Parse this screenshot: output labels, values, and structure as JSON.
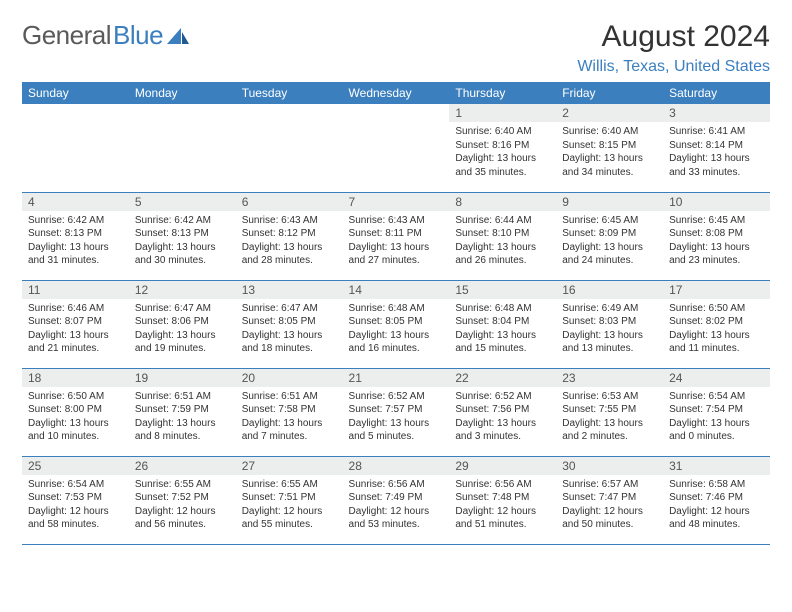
{
  "logo": {
    "text_gray": "General",
    "text_blue": "Blue"
  },
  "title": "August 2024",
  "location": "Willis, Texas, United States",
  "colors": {
    "header_bg": "#3b7fbf",
    "header_text": "#ffffff",
    "daynum_bg": "#eceded",
    "row_border": "#3b7fbf",
    "logo_gray": "#5a5a5a",
    "logo_blue": "#3b7fbf"
  },
  "weekdays": [
    "Sunday",
    "Monday",
    "Tuesday",
    "Wednesday",
    "Thursday",
    "Friday",
    "Saturday"
  ],
  "weeks": [
    [
      {
        "n": "",
        "sr": "",
        "ss": "",
        "dl1": "",
        "dl2": "",
        "empty": true
      },
      {
        "n": "",
        "sr": "",
        "ss": "",
        "dl1": "",
        "dl2": "",
        "empty": true
      },
      {
        "n": "",
        "sr": "",
        "ss": "",
        "dl1": "",
        "dl2": "",
        "empty": true
      },
      {
        "n": "",
        "sr": "",
        "ss": "",
        "dl1": "",
        "dl2": "",
        "empty": true
      },
      {
        "n": "1",
        "sr": "Sunrise: 6:40 AM",
        "ss": "Sunset: 8:16 PM",
        "dl1": "Daylight: 13 hours",
        "dl2": "and 35 minutes."
      },
      {
        "n": "2",
        "sr": "Sunrise: 6:40 AM",
        "ss": "Sunset: 8:15 PM",
        "dl1": "Daylight: 13 hours",
        "dl2": "and 34 minutes."
      },
      {
        "n": "3",
        "sr": "Sunrise: 6:41 AM",
        "ss": "Sunset: 8:14 PM",
        "dl1": "Daylight: 13 hours",
        "dl2": "and 33 minutes."
      }
    ],
    [
      {
        "n": "4",
        "sr": "Sunrise: 6:42 AM",
        "ss": "Sunset: 8:13 PM",
        "dl1": "Daylight: 13 hours",
        "dl2": "and 31 minutes."
      },
      {
        "n": "5",
        "sr": "Sunrise: 6:42 AM",
        "ss": "Sunset: 8:13 PM",
        "dl1": "Daylight: 13 hours",
        "dl2": "and 30 minutes."
      },
      {
        "n": "6",
        "sr": "Sunrise: 6:43 AM",
        "ss": "Sunset: 8:12 PM",
        "dl1": "Daylight: 13 hours",
        "dl2": "and 28 minutes."
      },
      {
        "n": "7",
        "sr": "Sunrise: 6:43 AM",
        "ss": "Sunset: 8:11 PM",
        "dl1": "Daylight: 13 hours",
        "dl2": "and 27 minutes."
      },
      {
        "n": "8",
        "sr": "Sunrise: 6:44 AM",
        "ss": "Sunset: 8:10 PM",
        "dl1": "Daylight: 13 hours",
        "dl2": "and 26 minutes."
      },
      {
        "n": "9",
        "sr": "Sunrise: 6:45 AM",
        "ss": "Sunset: 8:09 PM",
        "dl1": "Daylight: 13 hours",
        "dl2": "and 24 minutes."
      },
      {
        "n": "10",
        "sr": "Sunrise: 6:45 AM",
        "ss": "Sunset: 8:08 PM",
        "dl1": "Daylight: 13 hours",
        "dl2": "and 23 minutes."
      }
    ],
    [
      {
        "n": "11",
        "sr": "Sunrise: 6:46 AM",
        "ss": "Sunset: 8:07 PM",
        "dl1": "Daylight: 13 hours",
        "dl2": "and 21 minutes."
      },
      {
        "n": "12",
        "sr": "Sunrise: 6:47 AM",
        "ss": "Sunset: 8:06 PM",
        "dl1": "Daylight: 13 hours",
        "dl2": "and 19 minutes."
      },
      {
        "n": "13",
        "sr": "Sunrise: 6:47 AM",
        "ss": "Sunset: 8:05 PM",
        "dl1": "Daylight: 13 hours",
        "dl2": "and 18 minutes."
      },
      {
        "n": "14",
        "sr": "Sunrise: 6:48 AM",
        "ss": "Sunset: 8:05 PM",
        "dl1": "Daylight: 13 hours",
        "dl2": "and 16 minutes."
      },
      {
        "n": "15",
        "sr": "Sunrise: 6:48 AM",
        "ss": "Sunset: 8:04 PM",
        "dl1": "Daylight: 13 hours",
        "dl2": "and 15 minutes."
      },
      {
        "n": "16",
        "sr": "Sunrise: 6:49 AM",
        "ss": "Sunset: 8:03 PM",
        "dl1": "Daylight: 13 hours",
        "dl2": "and 13 minutes."
      },
      {
        "n": "17",
        "sr": "Sunrise: 6:50 AM",
        "ss": "Sunset: 8:02 PM",
        "dl1": "Daylight: 13 hours",
        "dl2": "and 11 minutes."
      }
    ],
    [
      {
        "n": "18",
        "sr": "Sunrise: 6:50 AM",
        "ss": "Sunset: 8:00 PM",
        "dl1": "Daylight: 13 hours",
        "dl2": "and 10 minutes."
      },
      {
        "n": "19",
        "sr": "Sunrise: 6:51 AM",
        "ss": "Sunset: 7:59 PM",
        "dl1": "Daylight: 13 hours",
        "dl2": "and 8 minutes."
      },
      {
        "n": "20",
        "sr": "Sunrise: 6:51 AM",
        "ss": "Sunset: 7:58 PM",
        "dl1": "Daylight: 13 hours",
        "dl2": "and 7 minutes."
      },
      {
        "n": "21",
        "sr": "Sunrise: 6:52 AM",
        "ss": "Sunset: 7:57 PM",
        "dl1": "Daylight: 13 hours",
        "dl2": "and 5 minutes."
      },
      {
        "n": "22",
        "sr": "Sunrise: 6:52 AM",
        "ss": "Sunset: 7:56 PM",
        "dl1": "Daylight: 13 hours",
        "dl2": "and 3 minutes."
      },
      {
        "n": "23",
        "sr": "Sunrise: 6:53 AM",
        "ss": "Sunset: 7:55 PM",
        "dl1": "Daylight: 13 hours",
        "dl2": "and 2 minutes."
      },
      {
        "n": "24",
        "sr": "Sunrise: 6:54 AM",
        "ss": "Sunset: 7:54 PM",
        "dl1": "Daylight: 13 hours",
        "dl2": "and 0 minutes."
      }
    ],
    [
      {
        "n": "25",
        "sr": "Sunrise: 6:54 AM",
        "ss": "Sunset: 7:53 PM",
        "dl1": "Daylight: 12 hours",
        "dl2": "and 58 minutes."
      },
      {
        "n": "26",
        "sr": "Sunrise: 6:55 AM",
        "ss": "Sunset: 7:52 PM",
        "dl1": "Daylight: 12 hours",
        "dl2": "and 56 minutes."
      },
      {
        "n": "27",
        "sr": "Sunrise: 6:55 AM",
        "ss": "Sunset: 7:51 PM",
        "dl1": "Daylight: 12 hours",
        "dl2": "and 55 minutes."
      },
      {
        "n": "28",
        "sr": "Sunrise: 6:56 AM",
        "ss": "Sunset: 7:49 PM",
        "dl1": "Daylight: 12 hours",
        "dl2": "and 53 minutes."
      },
      {
        "n": "29",
        "sr": "Sunrise: 6:56 AM",
        "ss": "Sunset: 7:48 PM",
        "dl1": "Daylight: 12 hours",
        "dl2": "and 51 minutes."
      },
      {
        "n": "30",
        "sr": "Sunrise: 6:57 AM",
        "ss": "Sunset: 7:47 PM",
        "dl1": "Daylight: 12 hours",
        "dl2": "and 50 minutes."
      },
      {
        "n": "31",
        "sr": "Sunrise: 6:58 AM",
        "ss": "Sunset: 7:46 PM",
        "dl1": "Daylight: 12 hours",
        "dl2": "and 48 minutes."
      }
    ]
  ]
}
